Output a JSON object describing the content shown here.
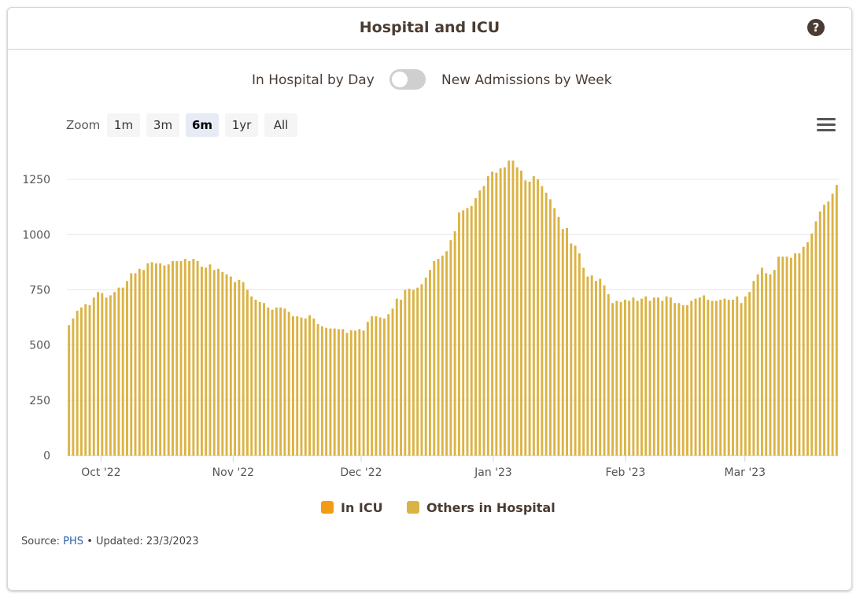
{
  "header": {
    "title": "Hospital and ICU",
    "help_icon": "question-circle-icon"
  },
  "toggle": {
    "left_label": "In Hospital by Day",
    "right_label": "New Admissions by Week",
    "state": "off"
  },
  "zoom": {
    "label": "Zoom",
    "buttons": [
      "1m",
      "3m",
      "6m",
      "1yr",
      "All"
    ],
    "active": "6m"
  },
  "menu_icon": "hamburger-menu-icon",
  "legend": {
    "items": [
      {
        "label": "In ICU",
        "color": "#f39c12"
      },
      {
        "label": "Others in Hospital",
        "color": "#dbb345"
      }
    ]
  },
  "footer": {
    "source_label": "Source:",
    "source_link": "PHS",
    "separator": "•",
    "updated": "Updated: 23/3/2023"
  },
  "chart_data": {
    "type": "bar",
    "stacked": true,
    "x_start": "2022-09-23",
    "x_end": "2023-03-23",
    "x_ticks": [
      "Oct '22",
      "Nov '22",
      "Dec '22",
      "Jan '23",
      "Feb '23",
      "Mar '23"
    ],
    "y_ticks": [
      0,
      250,
      500,
      750,
      1000,
      1250
    ],
    "ylim": [
      0,
      1350
    ],
    "grid": true,
    "legend_position": "bottom-center",
    "series": [
      {
        "name": "Others in Hospital",
        "color": "#dbb345",
        "values": [
          590,
          620,
          655,
          670,
          685,
          680,
          715,
          740,
          735,
          715,
          725,
          740,
          760,
          760,
          790,
          825,
          825,
          845,
          840,
          870,
          875,
          870,
          870,
          860,
          865,
          880,
          880,
          880,
          890,
          880,
          890,
          880,
          855,
          850,
          865,
          840,
          845,
          830,
          820,
          810,
          785,
          795,
          785,
          750,
          720,
          705,
          695,
          690,
          670,
          660,
          670,
          670,
          665,
          650,
          630,
          630,
          625,
          620,
          635,
          620,
          595,
          585,
          578,
          575,
          575,
          572,
          572,
          555,
          567,
          565,
          572,
          565,
          605,
          630,
          630,
          625,
          620,
          640,
          665,
          710,
          705,
          750,
          755,
          750,
          760,
          775,
          805,
          840,
          880,
          890,
          905,
          925,
          975,
          1015,
          1100,
          1110,
          1120,
          1130,
          1165,
          1200,
          1220,
          1265,
          1285,
          1280,
          1300,
          1305,
          1335,
          1335,
          1305,
          1290,
          1245,
          1240,
          1265,
          1250,
          1220,
          1190,
          1160,
          1120,
          1080,
          1025,
          1030,
          960,
          950,
          915,
          850,
          810,
          815,
          790,
          800,
          770,
          730,
          690,
          700,
          695,
          705,
          700,
          715,
          700,
          710,
          720,
          700,
          715,
          715,
          700,
          720,
          715,
          690,
          690,
          680,
          680,
          700,
          710,
          715,
          725,
          705,
          700,
          700,
          705,
          710,
          705,
          705,
          720,
          690,
          720,
          740,
          790,
          820,
          850,
          825,
          820,
          840,
          900,
          900,
          900,
          895,
          915,
          915,
          945,
          965,
          1005,
          1060,
          1105,
          1135,
          1150,
          1185,
          1225
        ]
      },
      {
        "name": "In ICU",
        "color": "#f39c12",
        "values": []
      }
    ]
  }
}
